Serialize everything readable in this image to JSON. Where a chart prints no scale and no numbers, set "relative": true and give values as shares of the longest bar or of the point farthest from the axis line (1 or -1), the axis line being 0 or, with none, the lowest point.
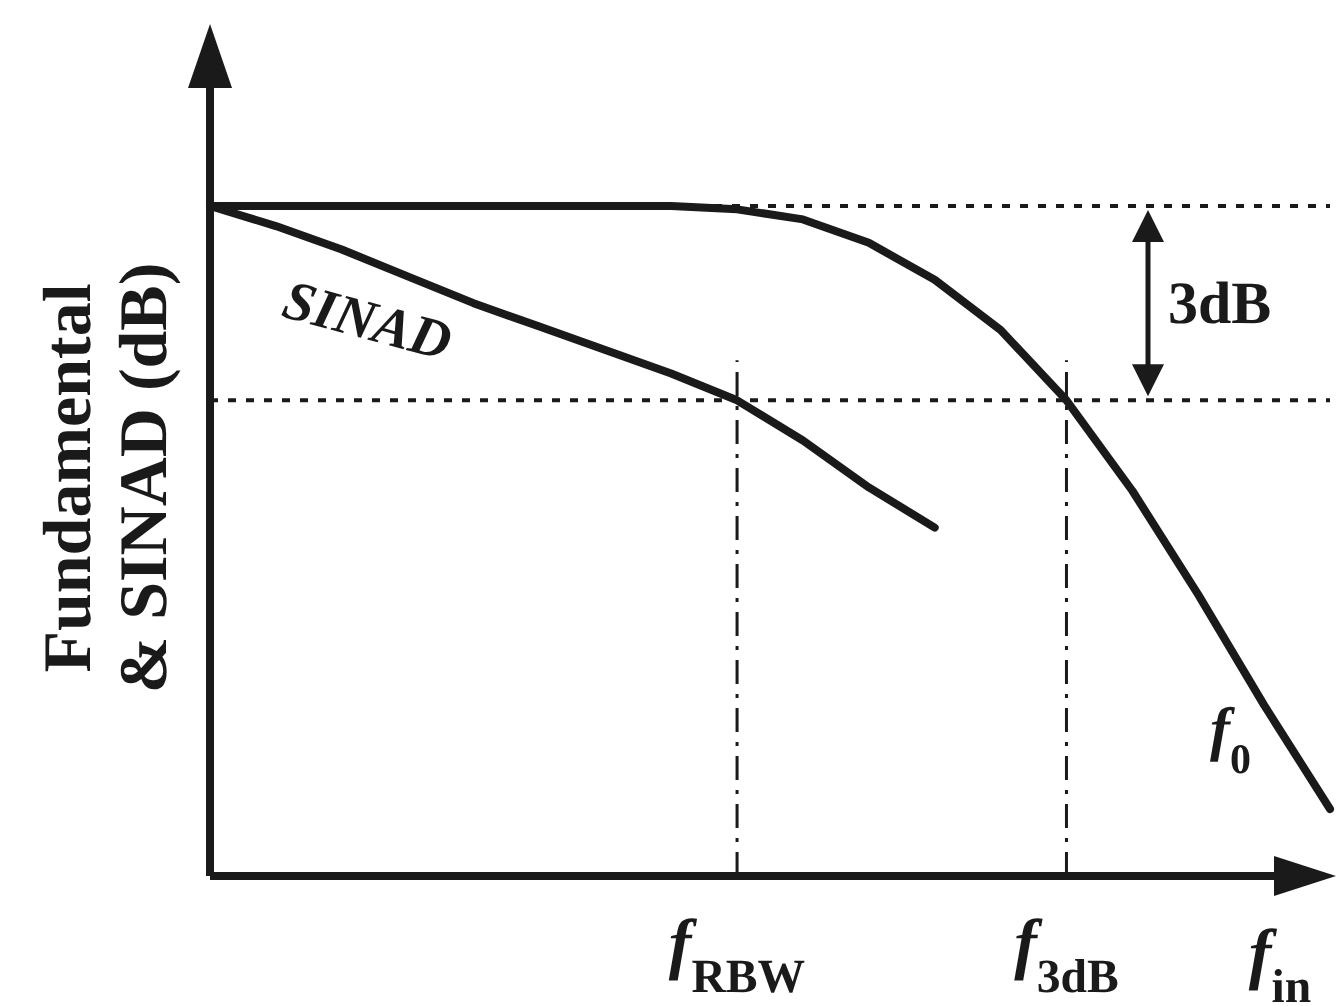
{
  "chart_data": {
    "type": "line",
    "relative": true,
    "ylabel": "Fundamental & SINAD (dB)",
    "xlabel": "f$_{in}$",
    "line_style": "solid",
    "marker": "none",
    "categories": [
      null,
      null,
      null,
      null,
      null,
      null,
      null,
      null,
      "f$_{RBW}$",
      null,
      null,
      null,
      null,
      "f$_{3dB}$",
      null,
      null,
      null,
      null
    ],
    "series": [
      {
        "name": "f$_{0}$",
        "color": "#1a1a1a",
        "values": [
          1,
          1,
          1,
          1,
          1,
          1,
          1,
          1,
          0.995,
          0.98,
          0.945,
          0.89,
          0.815,
          0.71,
          0.575,
          0.42,
          0.255,
          0.1
        ]
      },
      {
        "name": "SINAD",
        "color": "#1a1a1a",
        "values": [
          1,
          0.97,
          0.935,
          0.895,
          0.855,
          0.82,
          0.785,
          0.75,
          0.71,
          0.65,
          0.58,
          0.52,
          null,
          null,
          null,
          null,
          null,
          null
        ]
      }
    ],
    "ref_lines": [
      {
        "axis": "y",
        "value": 1,
        "line_style": "dotted",
        "color": "#1a1a1a"
      },
      {
        "axis": "y",
        "value": 0.71,
        "line_style": "dotted",
        "color": "#1a1a1a"
      },
      {
        "axis": "x",
        "value": "f$_{RBW}$",
        "line_style": "dashdot",
        "color": "#1a1a1a"
      },
      {
        "axis": "x",
        "value": "f$_{3dB}$",
        "line_style": "dashdot",
        "color": "#1a1a1a"
      }
    ],
    "annotations": [
      "3dB"
    ]
  }
}
